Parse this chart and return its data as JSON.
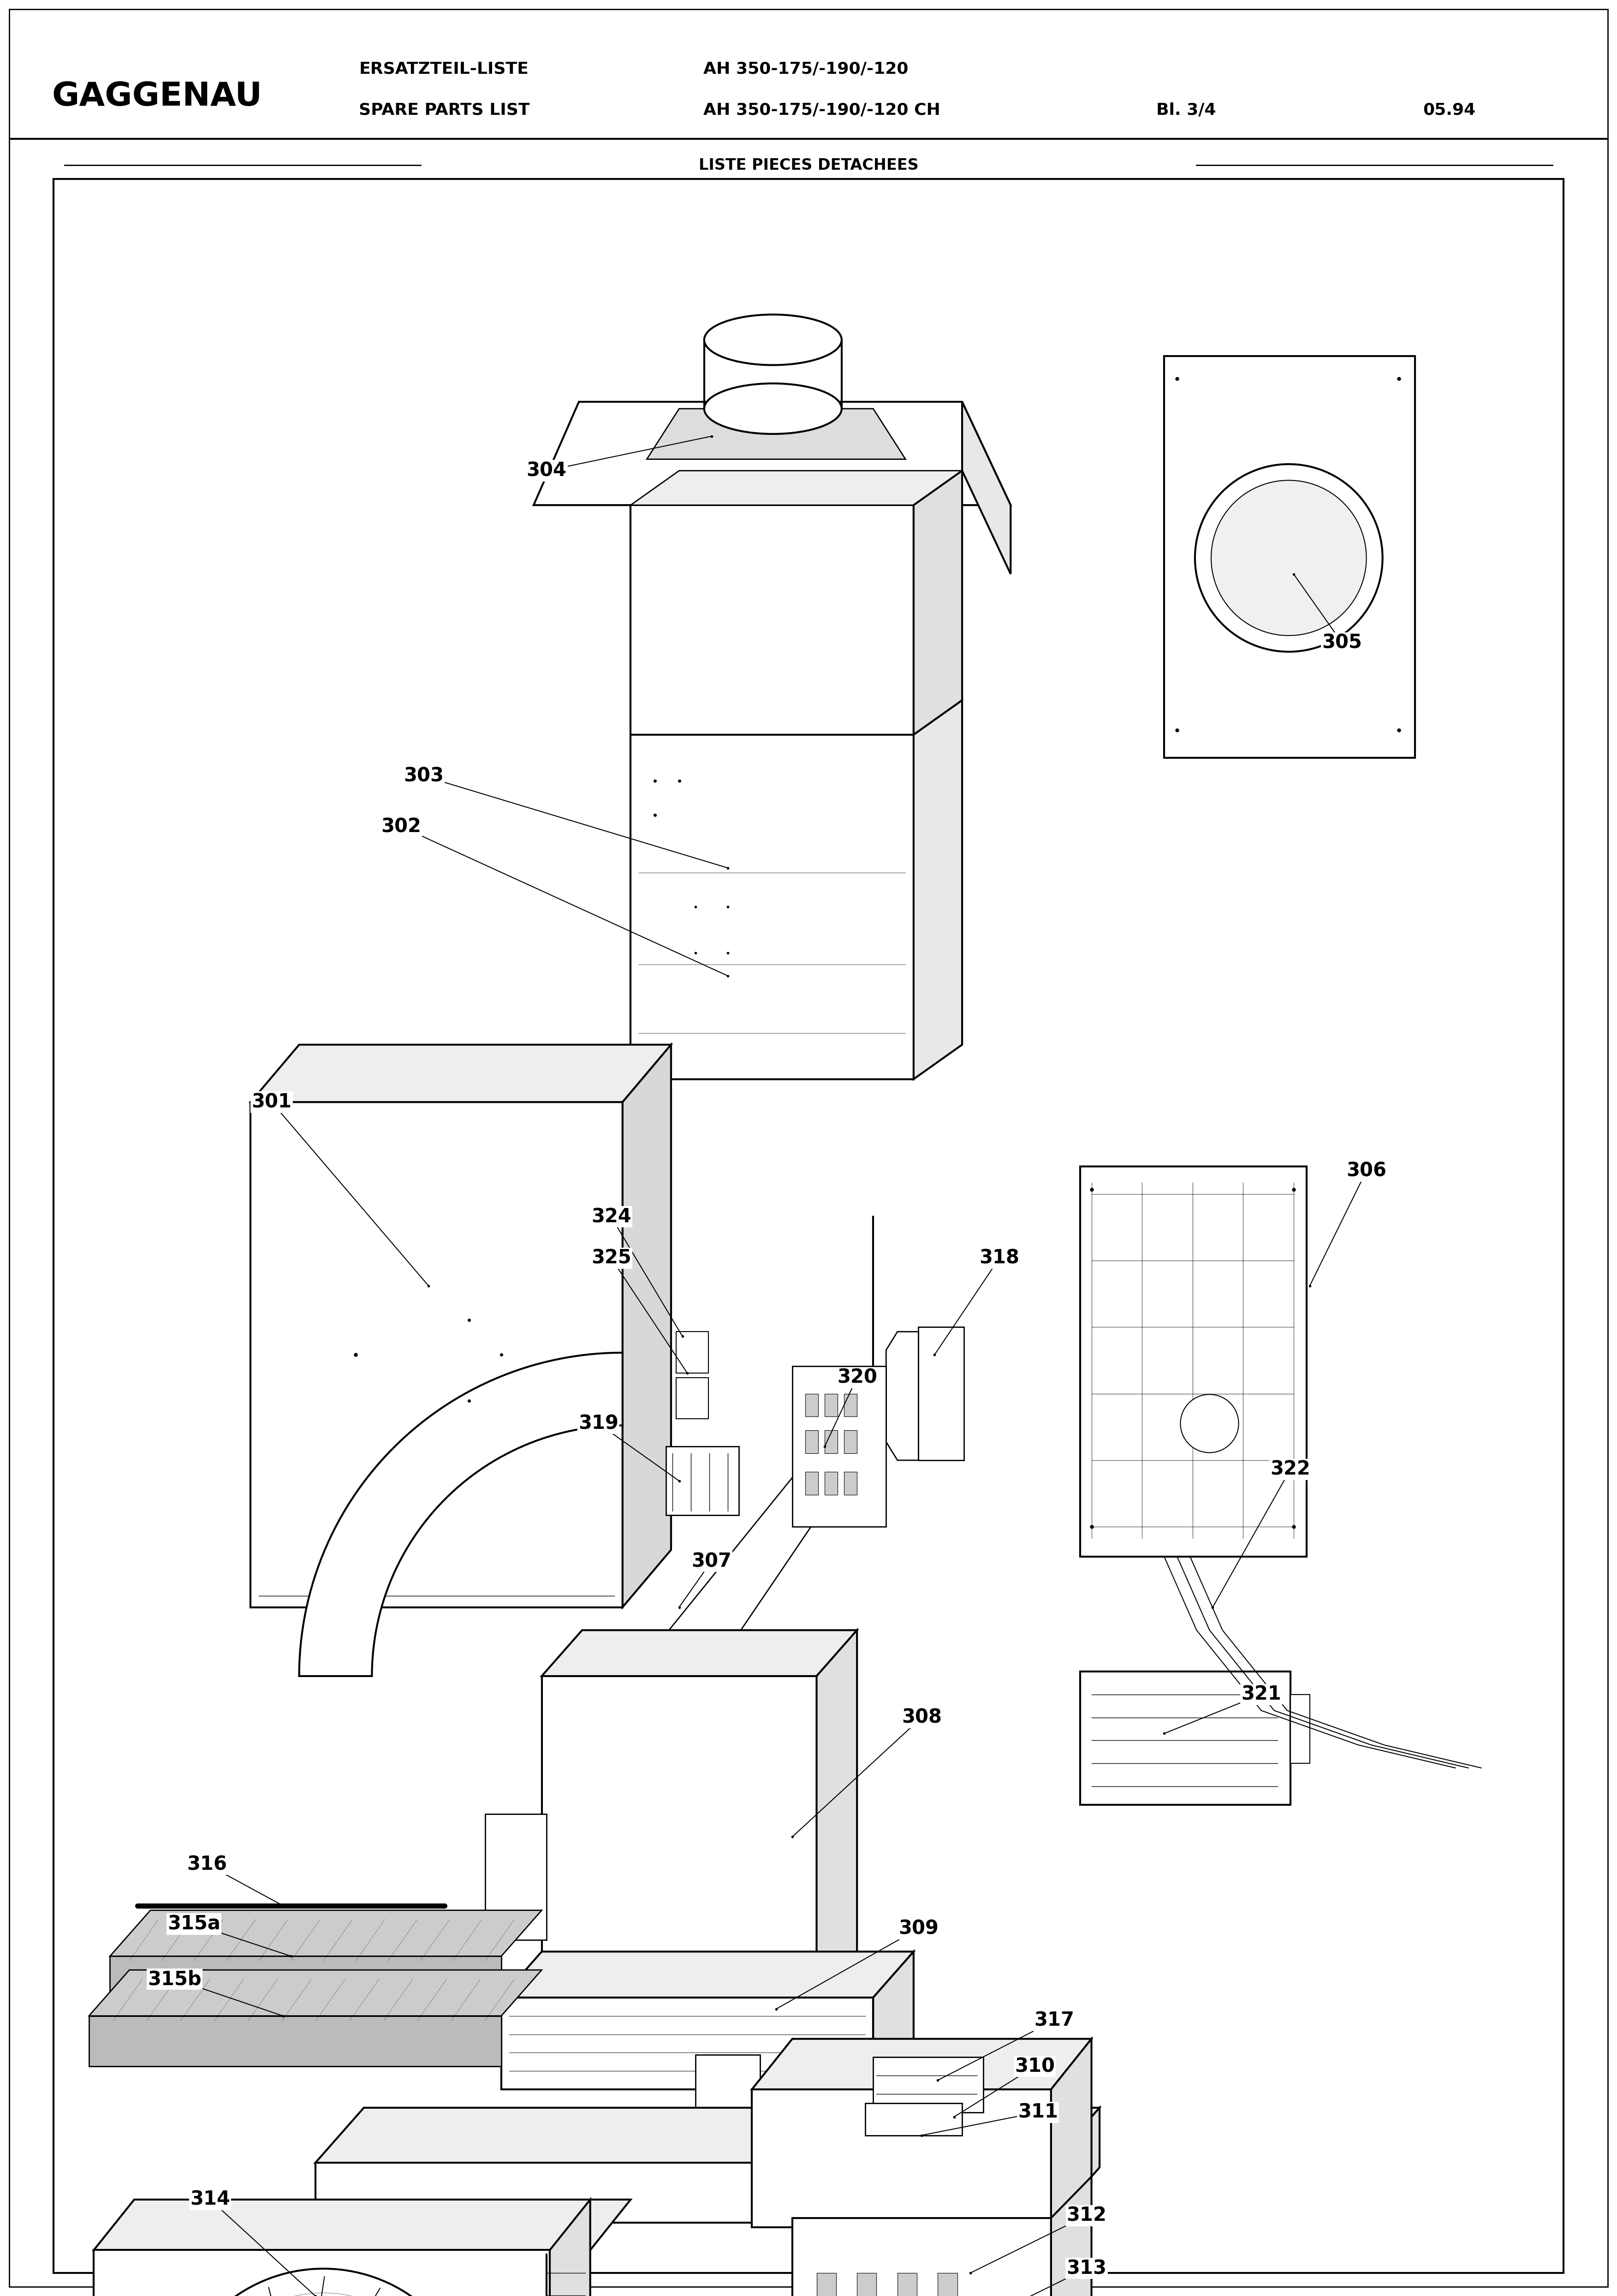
{
  "title_brand": "GAGGENAU",
  "header_line1_label": "ERSATZTEIL-LISTE",
  "header_line1_value": "AH 350-175/-190/-120",
  "header_line2_label": "SPARE PARTS LIST",
  "header_line2_value": "AH 350-175/-190/-120 CH",
  "header_bl": "Bl. 3/4",
  "header_date": "05.94",
  "subheader": "LISTE PIECES DETACHEES",
  "bg_color": "#ffffff",
  "figwidth": 3506,
  "figheight": 4978,
  "dpi": 100
}
